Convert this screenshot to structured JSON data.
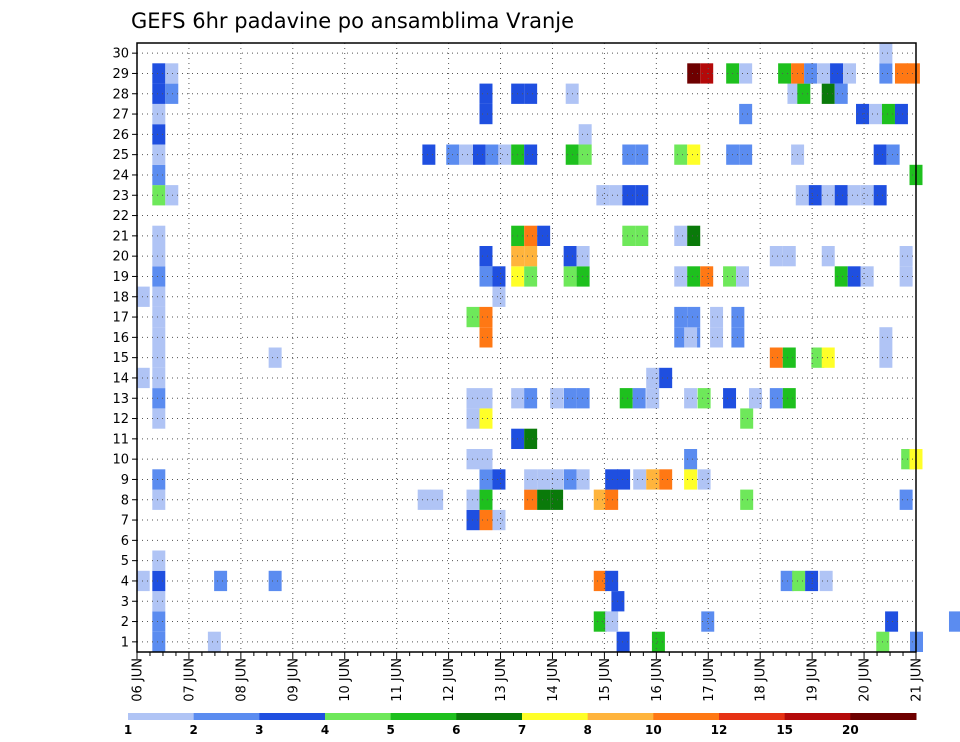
{
  "chart_data": {
    "type": "heatmap",
    "title": "GEFS 6hr padavine po ansamblima Vranje",
    "x_tick_labels": [
      "06 JUN",
      "07 JUN",
      "08 JUN",
      "09 JUN",
      "10 JUN",
      "11 JUN",
      "12 JUN",
      "13 JUN",
      "14 JUN",
      "15 JUN",
      "16 JUN",
      "17 JUN",
      "18 JUN",
      "19 JUN",
      "20 JUN",
      "21 JUN"
    ],
    "y_tick_labels": [
      "1",
      "2",
      "3",
      "4",
      "5",
      "6",
      "7",
      "8",
      "9",
      "10",
      "11",
      "12",
      "13",
      "14",
      "15",
      "16",
      "17",
      "18",
      "19",
      "20",
      "21",
      "22",
      "23",
      "24",
      "25",
      "26",
      "27",
      "28",
      "29",
      "30"
    ],
    "ylim": [
      0.5,
      30.5
    ],
    "grid": true,
    "colorbar": {
      "labels": [
        "1",
        "2",
        "3",
        "4",
        "5",
        "6",
        "7",
        "8",
        "10",
        "12",
        "15",
        "20"
      ],
      "colors": [
        "#b0c4f5",
        "#5b8cf0",
        "#1f4fe0",
        "#6ee85a",
        "#1ec01e",
        "#0a7a0a",
        "#ffff28",
        "#ffb43c",
        "#ff7814",
        "#e63214",
        "#b40a0a",
        "#6e0000"
      ]
    },
    "cells": [
      [
        1,
        0.42,
        2
      ],
      [
        1,
        1.49,
        1
      ],
      [
        1,
        9.36,
        3
      ],
      [
        1,
        10.04,
        5
      ],
      [
        1,
        14.36,
        4
      ],
      [
        1,
        15.01,
        2
      ],
      [
        2,
        0.42,
        2
      ],
      [
        2,
        8.92,
        5
      ],
      [
        2,
        9.14,
        1
      ],
      [
        2,
        10.99,
        2
      ],
      [
        2,
        14.53,
        3
      ],
      [
        2,
        15.76,
        2
      ],
      [
        3,
        0.42,
        1
      ],
      [
        3,
        9.26,
        3
      ],
      [
        4,
        0.12,
        1
      ],
      [
        4,
        0.42,
        3
      ],
      [
        4,
        1.61,
        2
      ],
      [
        4,
        2.66,
        2
      ],
      [
        4,
        8.92,
        10
      ],
      [
        4,
        9.14,
        3
      ],
      [
        4,
        12.52,
        2
      ],
      [
        4,
        12.74,
        4
      ],
      [
        4,
        12.99,
        3
      ],
      [
        4,
        13.27,
        1
      ],
      [
        5,
        0.42,
        1
      ],
      [
        7,
        6.47,
        3
      ],
      [
        7,
        6.72,
        10
      ],
      [
        7,
        6.97,
        1
      ],
      [
        8,
        0.42,
        1
      ],
      [
        8,
        5.53,
        1
      ],
      [
        8,
        5.77,
        1
      ],
      [
        8,
        6.47,
        1
      ],
      [
        8,
        6.72,
        5
      ],
      [
        8,
        7.58,
        10
      ],
      [
        8,
        7.83,
        6
      ],
      [
        8,
        8.08,
        6
      ],
      [
        8,
        8.92,
        8
      ],
      [
        8,
        9.14,
        10
      ],
      [
        8,
        11.74,
        4
      ],
      [
        8,
        14.81,
        2
      ],
      [
        9,
        0.42,
        2
      ],
      [
        9,
        6.72,
        2
      ],
      [
        9,
        6.97,
        3
      ],
      [
        9,
        7.58,
        1
      ],
      [
        9,
        7.83,
        1
      ],
      [
        9,
        8.08,
        1
      ],
      [
        9,
        8.34,
        2
      ],
      [
        9,
        8.59,
        1
      ],
      [
        9,
        9.14,
        3
      ],
      [
        9,
        9.37,
        3
      ],
      [
        9,
        9.68,
        1
      ],
      [
        9,
        9.93,
        8
      ],
      [
        9,
        10.18,
        10
      ],
      [
        9,
        10.66,
        7
      ],
      [
        9,
        10.92,
        1
      ],
      [
        10,
        6.47,
        1
      ],
      [
        10,
        6.72,
        1
      ],
      [
        10,
        10.66,
        2
      ],
      [
        10,
        14.84,
        4
      ],
      [
        10,
        15.0,
        7
      ],
      [
        11,
        7.33,
        3
      ],
      [
        11,
        7.58,
        6
      ],
      [
        12,
        0.42,
        1
      ],
      [
        12,
        6.47,
        1
      ],
      [
        12,
        6.72,
        7
      ],
      [
        12,
        11.74,
        4
      ],
      [
        13,
        0.42,
        2
      ],
      [
        13,
        6.47,
        1
      ],
      [
        13,
        6.72,
        1
      ],
      [
        13,
        7.33,
        1
      ],
      [
        13,
        7.58,
        2
      ],
      [
        13,
        8.08,
        1
      ],
      [
        13,
        8.34,
        2
      ],
      [
        13,
        8.59,
        2
      ],
      [
        13,
        9.42,
        5
      ],
      [
        13,
        9.67,
        2
      ],
      [
        13,
        9.93,
        1
      ],
      [
        13,
        10.66,
        1
      ],
      [
        13,
        10.92,
        4
      ],
      [
        13,
        11.41,
        3
      ],
      [
        13,
        11.91,
        1
      ],
      [
        13,
        12.31,
        2
      ],
      [
        13,
        12.56,
        5
      ],
      [
        14,
        0.12,
        1
      ],
      [
        14,
        0.42,
        1
      ],
      [
        14,
        9.93,
        1
      ],
      [
        14,
        10.18,
        3
      ],
      [
        15,
        0.42,
        1
      ],
      [
        15,
        2.66,
        1
      ],
      [
        15,
        12.31,
        10
      ],
      [
        15,
        12.56,
        5
      ],
      [
        15,
        13.11,
        4
      ],
      [
        15,
        13.31,
        7
      ],
      [
        15,
        14.42,
        1
      ],
      [
        16,
        0.42,
        1
      ],
      [
        16,
        6.72,
        10
      ],
      [
        16,
        10.47,
        2
      ],
      [
        16,
        10.72,
        2
      ],
      [
        16,
        10.66,
        1
      ],
      [
        16,
        11.16,
        1
      ],
      [
        16,
        11.57,
        2
      ],
      [
        16,
        14.42,
        1
      ],
      [
        17,
        0.42,
        1
      ],
      [
        17,
        6.47,
        4
      ],
      [
        17,
        6.72,
        10
      ],
      [
        17,
        10.47,
        2
      ],
      [
        17,
        10.72,
        2
      ],
      [
        17,
        11.16,
        1
      ],
      [
        17,
        11.57,
        2
      ],
      [
        18,
        0.12,
        1
      ],
      [
        18,
        0.42,
        1
      ],
      [
        18,
        6.97,
        1
      ],
      [
        19,
        0.42,
        2
      ],
      [
        19,
        6.72,
        2
      ],
      [
        19,
        6.97,
        3
      ],
      [
        19,
        7.33,
        7
      ],
      [
        19,
        7.58,
        4
      ],
      [
        19,
        8.34,
        4
      ],
      [
        19,
        8.59,
        5
      ],
      [
        19,
        10.47,
        1
      ],
      [
        19,
        10.72,
        5
      ],
      [
        19,
        10.97,
        10
      ],
      [
        19,
        11.41,
        4
      ],
      [
        19,
        11.66,
        1
      ],
      [
        19,
        13.56,
        5
      ],
      [
        19,
        13.81,
        3
      ],
      [
        19,
        14.06,
        1
      ],
      [
        19,
        14.81,
        1
      ],
      [
        20,
        0.42,
        1
      ],
      [
        20,
        6.72,
        3
      ],
      [
        20,
        7.33,
        8
      ],
      [
        20,
        7.58,
        8
      ],
      [
        20,
        8.34,
        3
      ],
      [
        20,
        8.59,
        1
      ],
      [
        20,
        12.31,
        1
      ],
      [
        20,
        12.56,
        1
      ],
      [
        20,
        13.31,
        1
      ],
      [
        20,
        14.81,
        1
      ],
      [
        21,
        0.42,
        1
      ],
      [
        21,
        7.33,
        5
      ],
      [
        21,
        7.58,
        10
      ],
      [
        21,
        7.83,
        3
      ],
      [
        21,
        9.47,
        4
      ],
      [
        21,
        9.72,
        4
      ],
      [
        21,
        10.47,
        1
      ],
      [
        21,
        10.72,
        6
      ],
      [
        23,
        0.42,
        4
      ],
      [
        23,
        0.67,
        1
      ],
      [
        23,
        8.97,
        1
      ],
      [
        23,
        9.22,
        1
      ],
      [
        23,
        9.47,
        3
      ],
      [
        23,
        9.72,
        3
      ],
      [
        23,
        12.81,
        1
      ],
      [
        23,
        13.06,
        3
      ],
      [
        23,
        13.31,
        1
      ],
      [
        23,
        13.56,
        3
      ],
      [
        23,
        13.81,
        1
      ],
      [
        23,
        14.06,
        1
      ],
      [
        23,
        14.31,
        3
      ],
      [
        24,
        0.42,
        2
      ],
      [
        24,
        15.0,
        5
      ],
      [
        25,
        0.42,
        1
      ],
      [
        25,
        5.62,
        3
      ],
      [
        25,
        6.08,
        2
      ],
      [
        25,
        6.33,
        1
      ],
      [
        25,
        6.59,
        3
      ],
      [
        25,
        6.84,
        2
      ],
      [
        25,
        7.08,
        1
      ],
      [
        25,
        7.33,
        5
      ],
      [
        25,
        7.58,
        3
      ],
      [
        25,
        8.38,
        5
      ],
      [
        25,
        8.63,
        4
      ],
      [
        25,
        9.47,
        2
      ],
      [
        25,
        9.72,
        2
      ],
      [
        25,
        10.47,
        4
      ],
      [
        25,
        10.72,
        7
      ],
      [
        25,
        11.47,
        2
      ],
      [
        25,
        11.72,
        2
      ],
      [
        25,
        12.72,
        1
      ],
      [
        25,
        14.31,
        3
      ],
      [
        25,
        14.56,
        2
      ],
      [
        26,
        0.42,
        3
      ],
      [
        26,
        8.63,
        1
      ],
      [
        27,
        0.42,
        1
      ],
      [
        27,
        6.72,
        3
      ],
      [
        27,
        11.72,
        2
      ],
      [
        27,
        13.97,
        3
      ],
      [
        27,
        14.22,
        1
      ],
      [
        27,
        14.47,
        5
      ],
      [
        27,
        14.72,
        3
      ],
      [
        28,
        0.42,
        3
      ],
      [
        28,
        0.67,
        2
      ],
      [
        28,
        6.72,
        3
      ],
      [
        28,
        7.33,
        3
      ],
      [
        28,
        7.58,
        3
      ],
      [
        28,
        8.38,
        1
      ],
      [
        28,
        12.65,
        1
      ],
      [
        28,
        12.84,
        5
      ],
      [
        28,
        13.31,
        6
      ],
      [
        28,
        13.56,
        2
      ],
      [
        29,
        0.42,
        3
      ],
      [
        29,
        0.67,
        1
      ],
      [
        29,
        10.72,
        20
      ],
      [
        29,
        10.97,
        15
      ],
      [
        29,
        11.47,
        5
      ],
      [
        29,
        11.72,
        1
      ],
      [
        29,
        12.47,
        5
      ],
      [
        29,
        12.72,
        10
      ],
      [
        29,
        12.97,
        2
      ],
      [
        29,
        13.22,
        1
      ],
      [
        29,
        13.47,
        3
      ],
      [
        29,
        13.72,
        1
      ],
      [
        29,
        14.42,
        2
      ],
      [
        29,
        14.72,
        10
      ],
      [
        29,
        14.95,
        10
      ],
      [
        30,
        14.42,
        1
      ]
    ]
  }
}
